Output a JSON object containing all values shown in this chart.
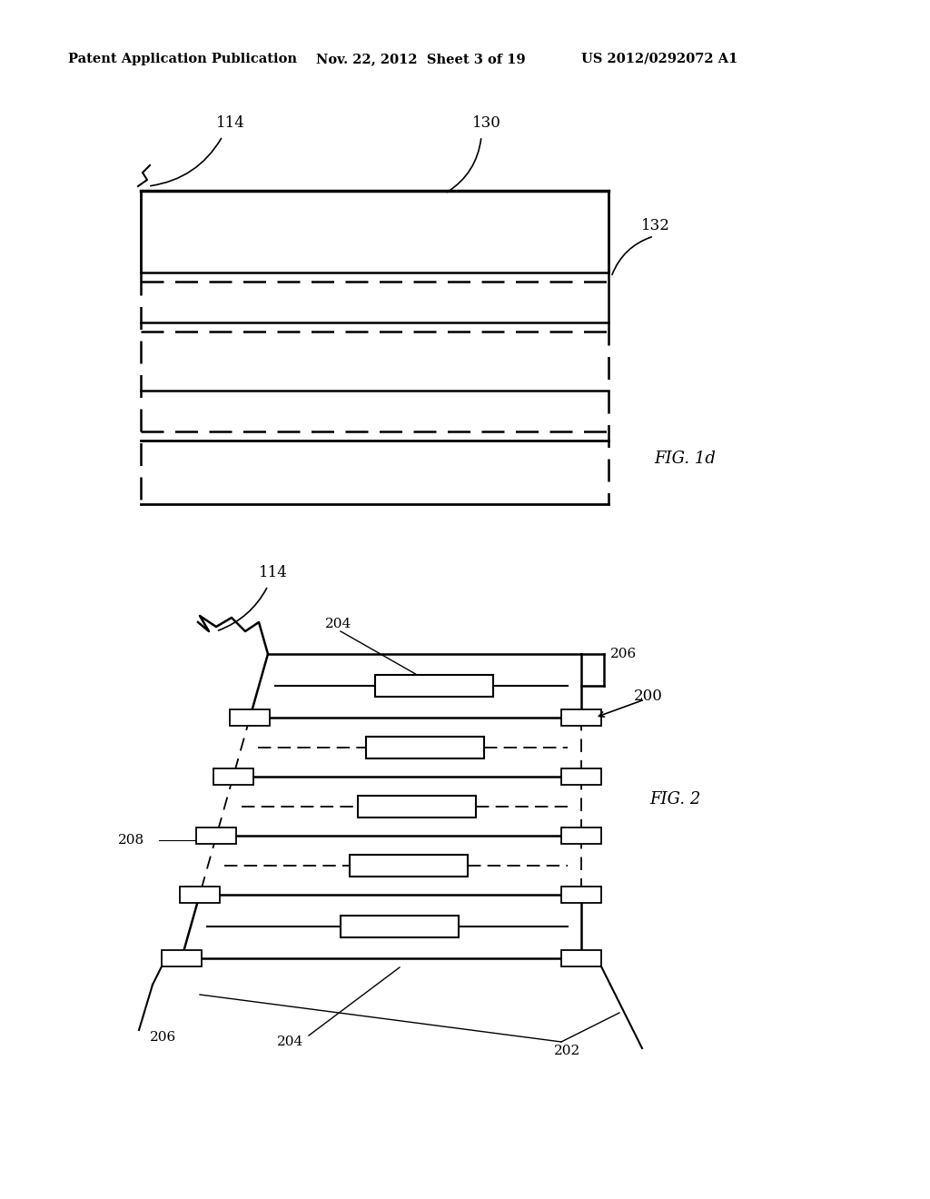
{
  "bg_color": "#ffffff",
  "header_text": "Patent Application Publication",
  "header_date": "Nov. 22, 2012  Sheet 3 of 19",
  "header_patent": "US 2012/0292072 A1",
  "fig1d_label": "FIG. 1d",
  "fig2_label": "FIG. 2",
  "label_114_fig1": "114",
  "label_130_fig1": "130",
  "label_132_fig1": "132",
  "label_114_fig2": "114",
  "label_204_top": "204",
  "label_206_top": "206",
  "label_200": "200",
  "label_208": "208",
  "label_206_bot": "206",
  "label_204_bot": "204",
  "label_202": "202"
}
